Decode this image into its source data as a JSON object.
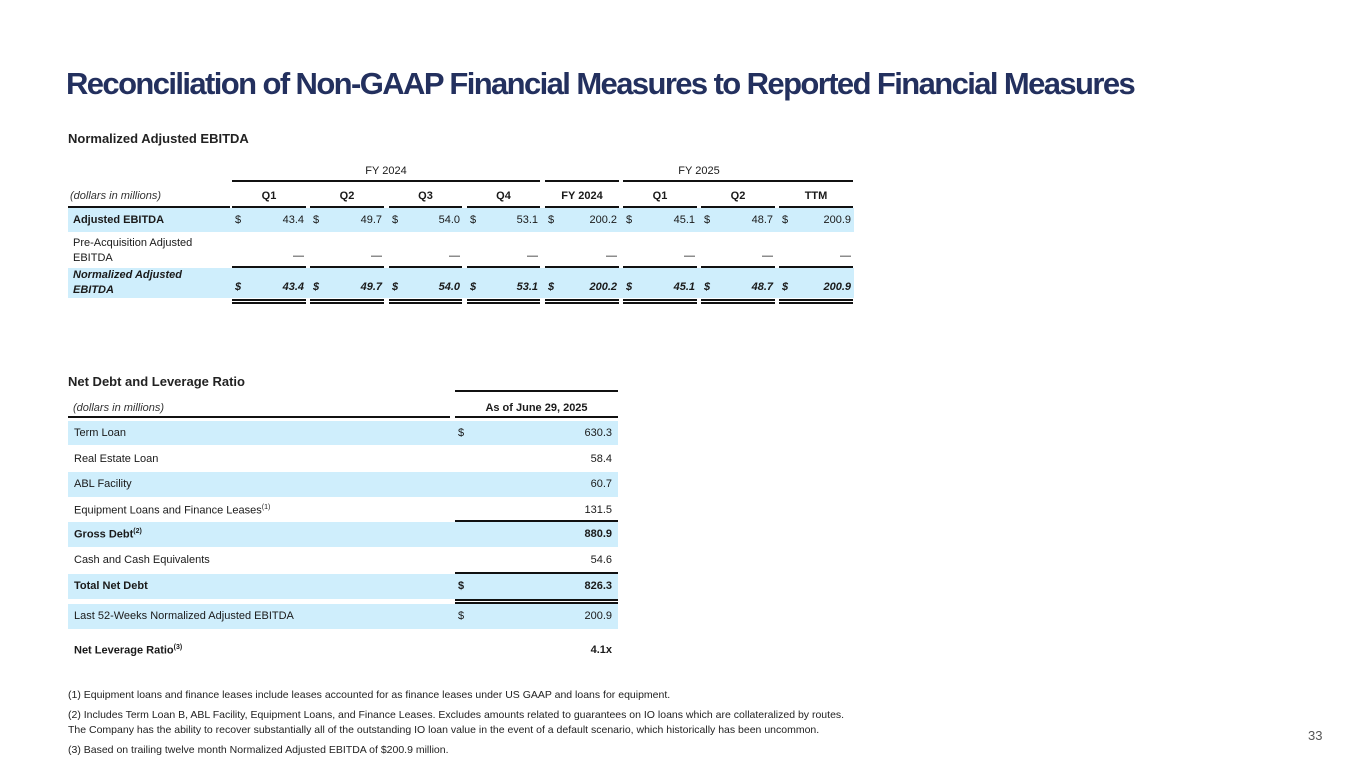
{
  "title": "Reconciliation of Non-GAAP Financial Measures to Reported Financial Measures",
  "page_number": "33",
  "ebitda_table": {
    "title": "Normalized Adjusted EBITDA",
    "groups": [
      "FY 2024",
      "FY 2025"
    ],
    "unit_label": "(dollars in millions)",
    "columns": [
      "Q1",
      "Q2",
      "Q3",
      "Q4",
      "FY 2024",
      "Q1",
      "Q2",
      "TTM"
    ],
    "rows": [
      {
        "label": "Adjusted EBITDA",
        "currency": "$",
        "values": [
          "43.4",
          "49.7",
          "54.0",
          "53.1",
          "200.2",
          "45.1",
          "48.7",
          "200.9"
        ]
      },
      {
        "label": "Pre-Acquisition Adjusted EBITDA",
        "currency": "",
        "values": [
          "—",
          "—",
          "—",
          "—",
          "—",
          "—",
          "—",
          "—"
        ]
      },
      {
        "label": "Normalized Adjusted EBITDA",
        "currency": "$",
        "values": [
          "43.4",
          "49.7",
          "54.0",
          "53.1",
          "200.2",
          "45.1",
          "48.7",
          "200.9"
        ]
      }
    ]
  },
  "debt_table": {
    "title": "Net Debt and Leverage Ratio",
    "unit_label": "(dollars in millions)",
    "column": "As of June 29, 2025",
    "rows": [
      {
        "label": "Term Loan",
        "sup": "",
        "currency": "$",
        "value": "630.3"
      },
      {
        "label": "Real Estate Loan",
        "sup": "",
        "currency": "",
        "value": "58.4"
      },
      {
        "label": "ABL Facility",
        "sup": "",
        "currency": "",
        "value": "60.7"
      },
      {
        "label": "Equipment Loans and Finance Leases",
        "sup": "(1)",
        "currency": "",
        "value": "131.5"
      },
      {
        "label": "Gross Debt",
        "sup": "(2)",
        "currency": "",
        "value": "880.9"
      },
      {
        "label": "Cash and Cash Equivalents",
        "sup": "",
        "currency": "",
        "value": "54.6"
      },
      {
        "label": "Total Net Debt",
        "sup": "",
        "currency": "$",
        "value": "826.3"
      },
      {
        "label": "Last 52-Weeks Normalized Adjusted EBITDA",
        "sup": "",
        "currency": "$",
        "value": "200.9"
      },
      {
        "label": "Net Leverage Ratio",
        "sup": "(3)",
        "currency": "",
        "value": "4.1x"
      }
    ]
  },
  "footnotes": [
    "(1) Equipment loans and finance leases include leases accounted for as finance leases under US GAAP and loans for equipment.",
    "(2) Includes Term Loan B, ABL Facility, Equipment Loans, and Finance Leases. Excludes amounts related to guarantees on IO loans which are collateralized by routes.",
    "The Company has the ability to recover substantially all of the outstanding IO loan value in the event of a default scenario, which historically has been uncommon.",
    "(3) Based on trailing twelve month Normalized Adjusted EBITDA of $200.9 million."
  ]
}
